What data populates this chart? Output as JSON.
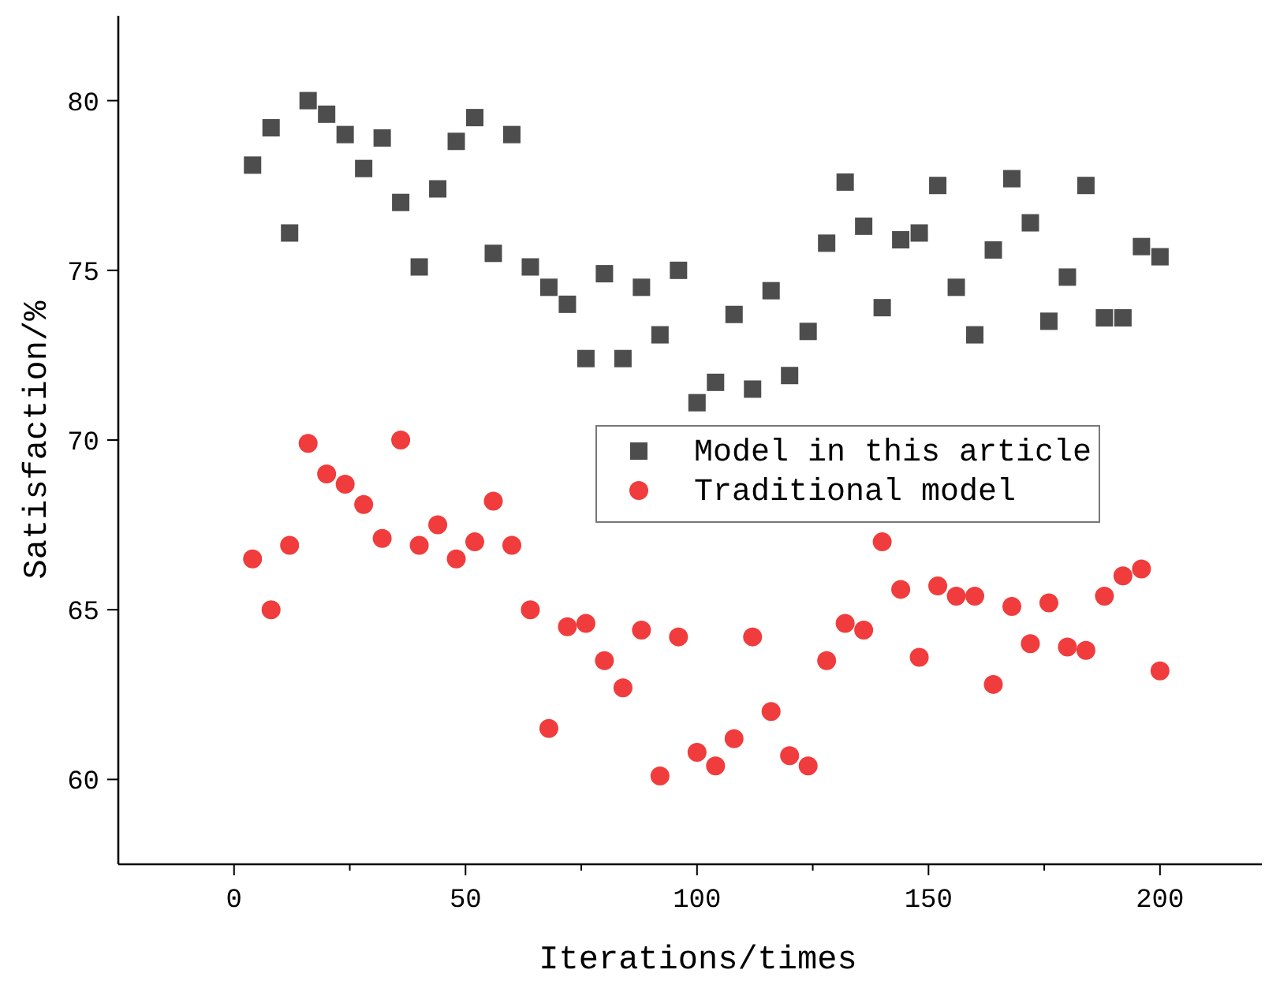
{
  "chart_data": {
    "type": "scatter",
    "xlabel": "Iterations/times",
    "ylabel": "Satisfaction/%",
    "xlim": [
      -25,
      222
    ],
    "ylim": [
      57.5,
      82.5
    ],
    "xticks": [
      0,
      {
        "value": 25,
        "label": null
      },
      50,
      {
        "value": 75,
        "label": null
      },
      100,
      {
        "value": 125,
        "label": null
      },
      150,
      {
        "value": 175,
        "label": null
      },
      200
    ],
    "yticks": [
      60,
      65,
      70,
      75,
      80
    ],
    "x": [
      4,
      8,
      12,
      16,
      20,
      24,
      28,
      32,
      36,
      40,
      44,
      48,
      52,
      56,
      60,
      64,
      68,
      72,
      76,
      80,
      84,
      88,
      92,
      96,
      100,
      104,
      108,
      112,
      116,
      120,
      124,
      128,
      132,
      136,
      140,
      144,
      148,
      152,
      156,
      160,
      164,
      168,
      172,
      176,
      180,
      184,
      188,
      192,
      196,
      200
    ],
    "grid": false,
    "legend": "right",
    "series": [
      {
        "name": "Model in this article",
        "color": "#4d4d4d",
        "marker": "square",
        "values": [
          78.1,
          79.2,
          76.1,
          80.0,
          79.6,
          79.0,
          78.0,
          78.9,
          77.0,
          75.1,
          77.4,
          78.8,
          79.5,
          75.5,
          79.0,
          75.1,
          74.5,
          74.0,
          72.4,
          74.9,
          72.4,
          74.5,
          73.1,
          75.0,
          71.1,
          71.7,
          73.7,
          71.5,
          74.4,
          71.9,
          73.2,
          75.8,
          77.6,
          76.3,
          73.9,
          75.9,
          76.1,
          77.5,
          74.5,
          73.1,
          75.6,
          77.7,
          76.4,
          73.5,
          74.8,
          77.5,
          73.6,
          73.6,
          75.7,
          75.4
        ]
      },
      {
        "name": "Traditional model",
        "color": "#f03c3c",
        "marker": "circle",
        "values": [
          66.5,
          65.0,
          66.9,
          69.9,
          69.0,
          68.7,
          68.1,
          67.1,
          70.0,
          66.9,
          67.5,
          66.5,
          67.0,
          68.2,
          66.9,
          65.0,
          61.5,
          64.5,
          64.6,
          63.5,
          62.7,
          64.4,
          60.1,
          64.2,
          60.8,
          60.4,
          61.2,
          64.2,
          62.0,
          60.7,
          60.4,
          63.5,
          64.6,
          64.4,
          67.0,
          65.6,
          63.6,
          65.7,
          65.4,
          65.4,
          62.8,
          65.1,
          64.0,
          65.2,
          63.9,
          63.8,
          65.4,
          66.0,
          66.2,
          63.2
        ]
      }
    ]
  }
}
